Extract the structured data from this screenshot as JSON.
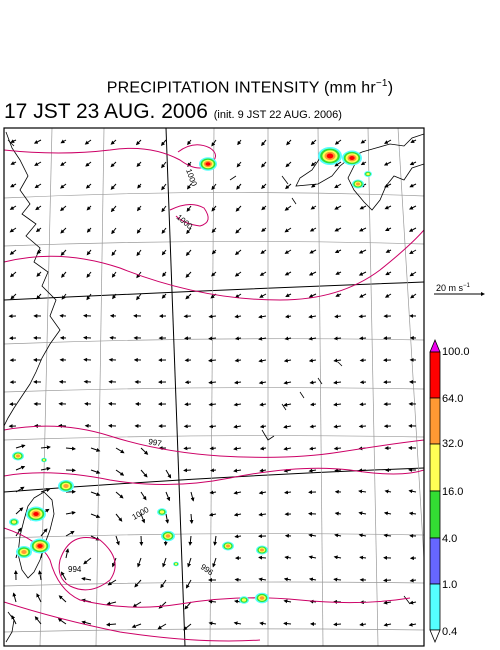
{
  "title": {
    "main": "PRECIPITATION INTENSITY (mm hr",
    "main_exp": "−1",
    "main_close": ")",
    "time": "17 JST 23 AUG. 2006",
    "init": "(init. 9 JST 22 AUG. 2006)"
  },
  "reference_vector": {
    "label": "20 m s",
    "exp": "−1"
  },
  "legend": {
    "labels": [
      "100.0",
      "64.0",
      "32.0",
      "16.0",
      "4.0",
      "1.0",
      "0.4"
    ],
    "colors": [
      "#ee00ee",
      "#ff0000",
      "#ff9933",
      "#ffff55",
      "#33dd33",
      "#6666ff",
      "#55ffff",
      "#ffffff"
    ]
  },
  "isobar_labels": [
    "1000",
    "1000",
    "997",
    "994",
    "996",
    "1000"
  ],
  "colors": {
    "isobar": "#cc0066",
    "grid": "#999999",
    "coast": "#000000"
  }
}
